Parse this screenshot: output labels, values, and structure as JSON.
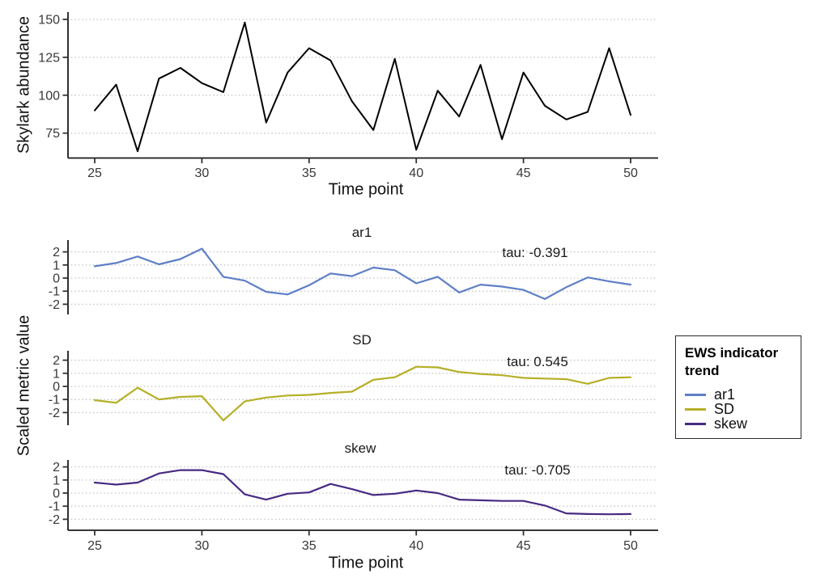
{
  "chart_data": [
    {
      "type": "line",
      "title": "",
      "xlabel": "Time point",
      "ylabel": "Skylark abundance",
      "x": [
        25,
        26,
        27,
        28,
        29,
        30,
        31,
        32,
        33,
        34,
        35,
        36,
        37,
        38,
        39,
        40,
        41,
        42,
        43,
        44,
        45,
        46,
        47,
        48,
        49,
        50
      ],
      "values": [
        90,
        107,
        63,
        111,
        118,
        108,
        102,
        148,
        82,
        115,
        131,
        123,
        96,
        77,
        124,
        64,
        103,
        86,
        120,
        71,
        115,
        93,
        84,
        89,
        131,
        87
      ],
      "yticks": [
        75,
        100,
        125,
        150
      ],
      "xticks": [
        25,
        30,
        35,
        40,
        45,
        50
      ],
      "ylim": [
        58,
        155
      ],
      "xlim": [
        23.7,
        51.3
      ],
      "line_color": "#000000",
      "grid": "dotted-horizontal",
      "legend_position": "none"
    },
    {
      "type": "line",
      "facet": "one panel per series, stacked vertically",
      "xlabel": "Time point",
      "ylabel": "Scaled metric value",
      "x": [
        25,
        26,
        27,
        28,
        29,
        30,
        31,
        32,
        33,
        34,
        35,
        36,
        37,
        38,
        39,
        40,
        41,
        42,
        43,
        44,
        45,
        46,
        47,
        48,
        49,
        50
      ],
      "yticks": [
        2,
        1,
        0,
        -1,
        -2
      ],
      "xticks": [
        25,
        30,
        35,
        40,
        45,
        50
      ],
      "ylim": [
        -2.8,
        2.6
      ],
      "xlim": [
        23.7,
        51.3
      ],
      "grid": "dotted-horizontal",
      "series": [
        {
          "name": "ar1",
          "color": "#5e7fc6",
          "tau_label": "tau: -0.391",
          "values": [
            0.9,
            1.15,
            1.65,
            1.05,
            1.45,
            2.25,
            0.1,
            -0.2,
            -1.05,
            -1.25,
            -0.55,
            0.35,
            0.15,
            0.8,
            0.6,
            -0.4,
            0.1,
            -1.1,
            -0.5,
            -0.65,
            -0.9,
            -1.6,
            -0.7,
            0.05,
            -0.25,
            -0.5
          ]
        },
        {
          "name": "SD",
          "color": "#b5af26",
          "tau_label": "tau: 0.545",
          "values": [
            -1.05,
            -1.25,
            -0.1,
            -1.0,
            -0.8,
            -0.75,
            -2.6,
            -1.15,
            -0.85,
            -0.7,
            -0.65,
            -0.5,
            -0.4,
            0.5,
            0.7,
            1.5,
            1.45,
            1.1,
            0.95,
            0.85,
            0.65,
            0.6,
            0.55,
            0.2,
            0.65,
            0.7
          ]
        },
        {
          "name": "skew",
          "color": "#472a82",
          "tau_label": "tau: -0.705",
          "values": [
            0.8,
            0.65,
            0.8,
            1.5,
            1.75,
            1.75,
            1.45,
            -0.1,
            -0.5,
            -0.05,
            0.05,
            0.7,
            0.3,
            -0.15,
            -0.05,
            0.2,
            0.0,
            -0.5,
            -0.55,
            -0.6,
            -0.6,
            -0.95,
            -1.55,
            -1.6,
            -1.62,
            -1.6
          ]
        }
      ],
      "legend": {
        "title": "EWS indicator trend",
        "position": "right",
        "entries": [
          "ar1",
          "SD",
          "skew"
        ]
      }
    }
  ]
}
